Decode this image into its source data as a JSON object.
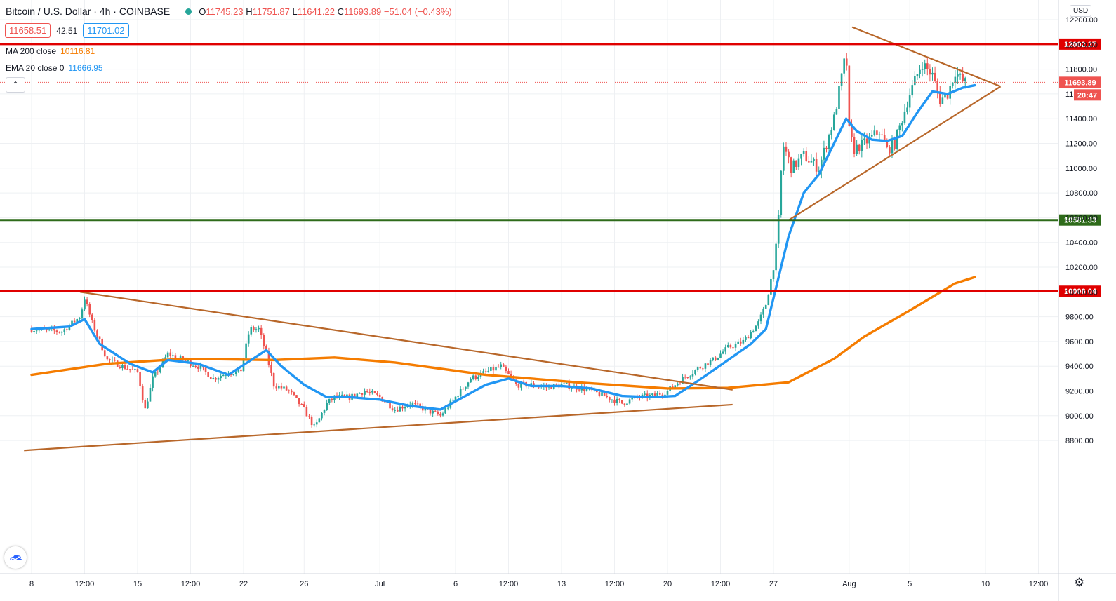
{
  "header": {
    "symbol": "Bitcoin / U.S. Dollar · 4h · COINBASE",
    "open_label": "O",
    "open": "11745.23",
    "high_label": "H",
    "high": "11751.87",
    "low_label": "L",
    "low": "11641.22",
    "close_label": "C",
    "close": "11693.89",
    "change": "−51.04 (−0.43%)"
  },
  "quote": {
    "bid": "11658.51",
    "spread": "42.51",
    "ask": "11701.02"
  },
  "indicators": [
    {
      "label": "MA 200 close",
      "value": "10116.81",
      "color": "#f57c00"
    },
    {
      "label": "EMA 20 close 0",
      "value": "11666.95",
      "color": "#2196f3"
    }
  ],
  "axis": {
    "currency": "USD"
  },
  "colors": {
    "up": "#26a69a",
    "down": "#ef5350",
    "ma200": "#f57c00",
    "ema20": "#2196f3",
    "trend": "#b8672a",
    "resistance": "#e00000",
    "support": "#2e6b1a",
    "grid": "#eef0f3"
  },
  "chart_data": {
    "type": "candlestick",
    "ylim": [
      8650,
      12300
    ],
    "y_ticks": [
      8800,
      9000,
      9200,
      9400,
      9600,
      9800,
      10000,
      10200,
      10400,
      10600,
      10800,
      11000,
      11200,
      11400,
      11600,
      11800,
      12000,
      12200
    ],
    "x_ticks": [
      {
        "label": "8",
        "t": 0
      },
      {
        "label": "12:00",
        "t": 3.5
      },
      {
        "label": "15",
        "t": 7
      },
      {
        "label": "12:00",
        "t": 10.5
      },
      {
        "label": "22",
        "t": 14
      },
      {
        "label": "26",
        "t": 18
      },
      {
        "label": "Jul",
        "t": 23
      },
      {
        "label": "6",
        "t": 28
      },
      {
        "label": "12:00",
        "t": 31.5
      },
      {
        "label": "13",
        "t": 35
      },
      {
        "label": "12:00",
        "t": 38.5
      },
      {
        "label": "20",
        "t": 42
      },
      {
        "label": "12:00",
        "t": 45.5
      },
      {
        "label": "27",
        "t": 49
      },
      {
        "label": "Aug",
        "t": 54
      },
      {
        "label": "5",
        "t": 58
      },
      {
        "label": "10",
        "t": 63
      },
      {
        "label": "12:00",
        "t": 66.5
      }
    ],
    "price_anchors": [
      [
        0,
        9700
      ],
      [
        2,
        9680
      ],
      [
        3.2,
        9800
      ],
      [
        3.5,
        9950
      ],
      [
        4,
        9750
      ],
      [
        5,
        9450
      ],
      [
        6,
        9400
      ],
      [
        7,
        9350
      ],
      [
        7.5,
        9050
      ],
      [
        8,
        9300
      ],
      [
        9,
        9500
      ],
      [
        10,
        9450
      ],
      [
        11,
        9400
      ],
      [
        12,
        9300
      ],
      [
        13,
        9350
      ],
      [
        13.8,
        9350
      ],
      [
        14.4,
        9700
      ],
      [
        15,
        9700
      ],
      [
        15.5,
        9500
      ],
      [
        16,
        9250
      ],
      [
        17,
        9200
      ],
      [
        18,
        9050
      ],
      [
        18.7,
        8900
      ],
      [
        19.5,
        9100
      ],
      [
        20,
        9150
      ],
      [
        21,
        9150
      ],
      [
        22,
        9200
      ],
      [
        23,
        9150
      ],
      [
        24,
        9050
      ],
      [
        25,
        9100
      ],
      [
        26,
        9050
      ],
      [
        27,
        9000
      ],
      [
        28,
        9150
      ],
      [
        29,
        9300
      ],
      [
        30,
        9350
      ],
      [
        31,
        9400
      ],
      [
        32,
        9250
      ],
      [
        33,
        9250
      ],
      [
        34,
        9230
      ],
      [
        35,
        9250
      ],
      [
        36,
        9230
      ],
      [
        37,
        9200
      ],
      [
        38,
        9150
      ],
      [
        39,
        9100
      ],
      [
        40,
        9150
      ],
      [
        41,
        9160
      ],
      [
        42,
        9200
      ],
      [
        43,
        9300
      ],
      [
        44,
        9380
      ],
      [
        45,
        9450
      ],
      [
        46,
        9550
      ],
      [
        47,
        9600
      ],
      [
        48,
        9750
      ],
      [
        48.5,
        9900
      ],
      [
        49,
        10200
      ],
      [
        49.3,
        10500
      ],
      [
        49.6,
        11200
      ],
      [
        50.2,
        11000
      ],
      [
        51,
        11100
      ],
      [
        52,
        11000
      ],
      [
        53,
        11400
      ],
      [
        53.6,
        11800
      ],
      [
        53.8,
        11950
      ],
      [
        54,
        11300
      ],
      [
        54.3,
        11150
      ],
      [
        55,
        11200
      ],
      [
        56,
        11300
      ],
      [
        56.5,
        11150
      ],
      [
        57,
        11200
      ],
      [
        57.5,
        11400
      ],
      [
        58,
        11600
      ],
      [
        58.8,
        11850
      ],
      [
        59.5,
        11750
      ],
      [
        60,
        11550
      ],
      [
        60.5,
        11600
      ],
      [
        61,
        11780
      ],
      [
        61.5,
        11700
      ],
      [
        61.8,
        11690
      ]
    ],
    "ma200": [
      [
        0,
        9330
      ],
      [
        5,
        9420
      ],
      [
        10,
        9460
      ],
      [
        16,
        9450
      ],
      [
        20,
        9470
      ],
      [
        24,
        9430
      ],
      [
        30,
        9330
      ],
      [
        36,
        9270
      ],
      [
        42,
        9220
      ],
      [
        46,
        9225
      ],
      [
        50,
        9270
      ],
      [
        53,
        9460
      ],
      [
        55,
        9640
      ],
      [
        58,
        9850
      ],
      [
        61,
        10070
      ],
      [
        62.3,
        10120
      ]
    ],
    "ema20": [
      [
        0,
        9700
      ],
      [
        2.5,
        9720
      ],
      [
        3.5,
        9780
      ],
      [
        4.5,
        9580
      ],
      [
        6.5,
        9420
      ],
      [
        8,
        9350
      ],
      [
        9,
        9450
      ],
      [
        11,
        9420
      ],
      [
        13,
        9330
      ],
      [
        14.5,
        9450
      ],
      [
        15.5,
        9530
      ],
      [
        16.5,
        9400
      ],
      [
        18,
        9250
      ],
      [
        19.5,
        9150
      ],
      [
        21,
        9150
      ],
      [
        23,
        9130
      ],
      [
        25,
        9080
      ],
      [
        27,
        9050
      ],
      [
        28.5,
        9150
      ],
      [
        30,
        9250
      ],
      [
        31.5,
        9300
      ],
      [
        33,
        9240
      ],
      [
        35,
        9240
      ],
      [
        37,
        9220
      ],
      [
        39,
        9160
      ],
      [
        41,
        9150
      ],
      [
        42.5,
        9160
      ],
      [
        44,
        9280
      ],
      [
        46,
        9450
      ],
      [
        47.5,
        9580
      ],
      [
        48.5,
        9700
      ],
      [
        49.2,
        10050
      ],
      [
        50,
        10450
      ],
      [
        51,
        10800
      ],
      [
        52,
        10950
      ],
      [
        53,
        11200
      ],
      [
        53.8,
        11400
      ],
      [
        54.5,
        11300
      ],
      [
        55.5,
        11230
      ],
      [
        56.5,
        11220
      ],
      [
        57.5,
        11260
      ],
      [
        58.5,
        11450
      ],
      [
        59.5,
        11620
      ],
      [
        60.5,
        11600
      ],
      [
        61.5,
        11650
      ],
      [
        62.3,
        11670
      ]
    ],
    "trendlines": [
      {
        "name": "falling-wedge-top",
        "from": [
          3.2,
          10000
        ],
        "to": [
          46.3,
          9210
        ]
      },
      {
        "name": "wedge-bottom",
        "from": [
          -0.5,
          8720
        ],
        "to": [
          46.3,
          9090
        ]
      },
      {
        "name": "triangle-top",
        "from": [
          54.2,
          12140
        ],
        "to": [
          64,
          11660
        ]
      },
      {
        "name": "triangle-bottom",
        "from": [
          50,
          10580
        ],
        "to": [
          64,
          11660
        ]
      }
    ],
    "horizontal_levels": [
      {
        "value": 12002.27,
        "label": "12002.27",
        "color": "#e00000"
      },
      {
        "value": 10581.33,
        "label": "10581.33",
        "color": "#2e6b1a"
      },
      {
        "value": 10006.04,
        "label": "10006.04",
        "color": "#e00000"
      }
    ],
    "last_price": {
      "value": 11693.89,
      "label": "11693.89",
      "timer": "20:47"
    }
  }
}
